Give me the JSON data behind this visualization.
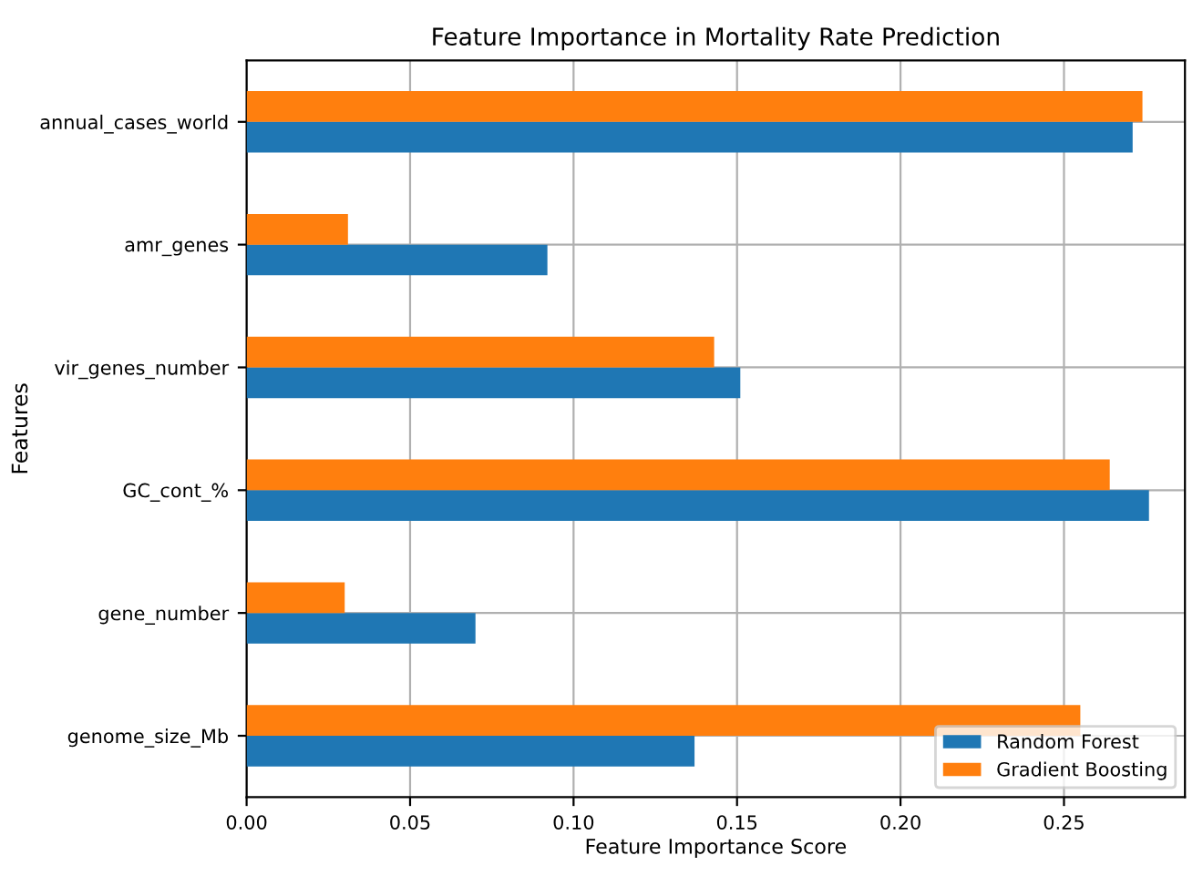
{
  "chart_data": {
    "type": "bar",
    "orientation": "horizontal",
    "title": "Feature Importance in Mortality Rate Prediction",
    "xlabel": "Feature Importance Score",
    "ylabel": "Features",
    "categories": [
      "annual_cases_world",
      "amr_genes",
      "vir_genes_number",
      "GC_cont_%",
      "gene_number",
      "genome_size_Mb"
    ],
    "series": [
      {
        "name": "Random Forest",
        "color": "#1f77b4",
        "values": [
          0.271,
          0.092,
          0.151,
          0.276,
          0.07,
          0.137
        ]
      },
      {
        "name": "Gradient Boosting",
        "color": "#ff7f0e",
        "values": [
          0.274,
          0.031,
          0.143,
          0.264,
          0.03,
          0.255
        ]
      }
    ],
    "xlim": [
      0,
      0.287
    ],
    "xticks": [
      {
        "value": 0,
        "label": "0.00"
      },
      {
        "value": 0.05,
        "label": "0.05"
      },
      {
        "value": 0.1,
        "label": "0.10"
      },
      {
        "value": 0.15,
        "label": "0.15"
      },
      {
        "value": 0.2,
        "label": "0.20"
      },
      {
        "value": 0.25,
        "label": "0.25"
      }
    ],
    "grid": true,
    "legend": "bottom right"
  }
}
